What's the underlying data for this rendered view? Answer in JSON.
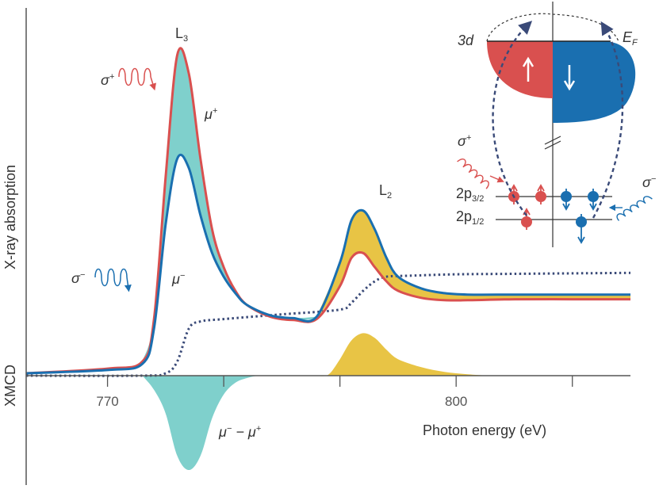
{
  "colors": {
    "mu_plus": "#d9504f",
    "mu_minus": "#1a6fb0",
    "edge_step": "#3a4a78",
    "diff_l3_fill": "#7fd0cc",
    "diff_l2_fill": "#e8c445",
    "axis": "#333333"
  },
  "labels": {
    "y_axis": "X-ray absorption",
    "y_axis_lower": "XMCD",
    "x_axis": "Photon energy (eV)",
    "edge_l3": "L",
    "edge_l3_sub": "3",
    "edge_l2": "L",
    "edge_l2_sub": "2",
    "mu_plus": "μ",
    "mu_plus_sup": "+",
    "mu_minus": "μ",
    "mu_minus_sup": "−",
    "xmcd_formula": "μ",
    "xmcd_formula_sup1": "−",
    "xmcd_formula_mid": " − μ",
    "xmcd_formula_sup2": "+",
    "sigma_plus": "σ",
    "sigma_plus_sup": "+",
    "sigma_minus": "σ",
    "sigma_minus_sup": "−"
  },
  "inset": {
    "band_label": "3d",
    "fermi_label": "E",
    "fermi_sub": "F",
    "level_2p32": "2p",
    "level_2p32_sub": "3/2",
    "level_2p12": "2p",
    "level_2p12_sub": "1/2",
    "sigma_plus": "σ",
    "sigma_plus_sup": "+",
    "sigma_minus": "σ",
    "sigma_minus_sup": "−"
  },
  "chart_data": {
    "type": "line",
    "xlabel": "Photon energy (eV)",
    "ylabel": "X-ray absorption",
    "xlim": [
      763,
      815
    ],
    "ylim": [
      -2.1,
      7.2
    ],
    "x_ticks": [
      770,
      780,
      790,
      800,
      810
    ],
    "x_tick_labels": [
      "770",
      "",
      "",
      "800",
      ""
    ],
    "grid": false,
    "series": [
      {
        "name": "μ+",
        "x": [
          763,
          770,
          773,
          774,
          775,
          776,
          777,
          778,
          779,
          780,
          781,
          782,
          784,
          786,
          788,
          790,
          791,
          792,
          793,
          794,
          795,
          797,
          799,
          801,
          805,
          810,
          815
        ],
        "y": [
          0.05,
          0.15,
          0.3,
          1.2,
          4.2,
          6.8,
          6.4,
          4.6,
          3.1,
          2.3,
          1.8,
          1.5,
          1.25,
          1.18,
          1.2,
          1.9,
          2.5,
          2.6,
          2.3,
          2.0,
          1.8,
          1.65,
          1.6,
          1.6,
          1.62,
          1.62,
          1.62
        ]
      },
      {
        "name": "μ−",
        "x": [
          763,
          770,
          773,
          774,
          775,
          776,
          777,
          778,
          779,
          780,
          781,
          782,
          784,
          786,
          788,
          790,
          791,
          792,
          793,
          794,
          795,
          797,
          799,
          801,
          805,
          810,
          815
        ],
        "y": [
          0.05,
          0.12,
          0.25,
          1.0,
          3.2,
          4.6,
          4.4,
          3.4,
          2.6,
          2.1,
          1.75,
          1.5,
          1.28,
          1.22,
          1.25,
          2.4,
          3.3,
          3.5,
          3.1,
          2.5,
          2.1,
          1.85,
          1.75,
          1.72,
          1.72,
          1.72,
          1.72
        ]
      },
      {
        "name": "edge step",
        "x": [
          763,
          773,
          775,
          776,
          777,
          778,
          780,
          785,
          790,
          791,
          792,
          793,
          794,
          796,
          800,
          805,
          815
        ],
        "y": [
          0.0,
          0.0,
          0.05,
          0.3,
          1.0,
          1.15,
          1.2,
          1.3,
          1.4,
          1.55,
          1.8,
          2.0,
          2.1,
          2.12,
          2.15,
          2.16,
          2.18
        ]
      },
      {
        "name": "μ− − μ+",
        "x": [
          773,
          774,
          775,
          776,
          777,
          778,
          779,
          780,
          781,
          782,
          783,
          784,
          786,
          788,
          789,
          790,
          791,
          792,
          793,
          794,
          795,
          797,
          799,
          801,
          803
        ],
        "y": [
          0,
          -0.3,
          -0.8,
          -1.7,
          -2.0,
          -1.7,
          -0.9,
          -0.4,
          -0.15,
          -0.05,
          0,
          0,
          0,
          0,
          0.02,
          0.35,
          0.75,
          0.9,
          0.8,
          0.55,
          0.35,
          0.18,
          0.08,
          0.03,
          0
        ]
      }
    ],
    "annotations": [
      "L3",
      "L2",
      "μ+",
      "μ−",
      "μ− − μ+",
      "σ+",
      "σ−"
    ]
  }
}
